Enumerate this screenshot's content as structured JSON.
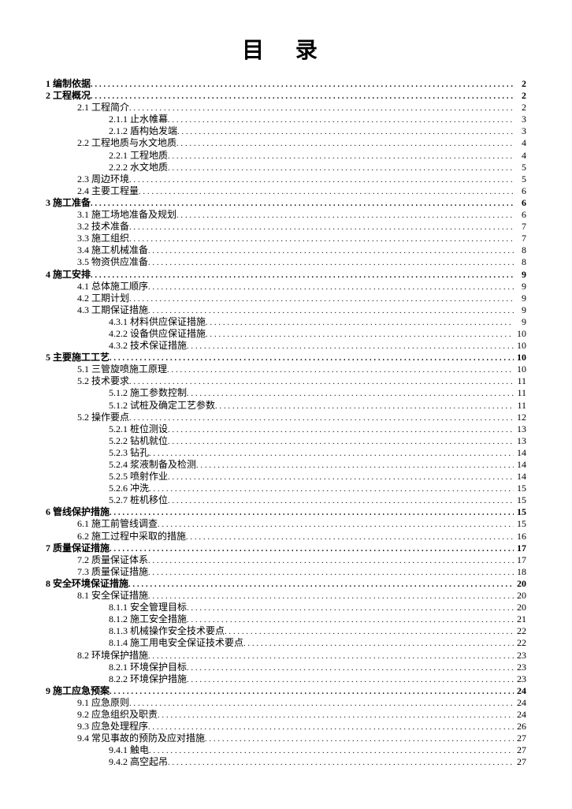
{
  "title": "目 录",
  "entries": [
    {
      "level": 1,
      "num": "1",
      "label": "编制依据",
      "page": "2"
    },
    {
      "level": 1,
      "num": "2",
      "label": "工程概况",
      "page": "2"
    },
    {
      "level": 2,
      "num": "2.1",
      "label": "工程简介",
      "page": "2"
    },
    {
      "level": 3,
      "num": "2.1.1",
      "label": "止水帷幕",
      "page": "3"
    },
    {
      "level": 3,
      "num": "2.1.2",
      "label": "盾构始发端",
      "page": "3"
    },
    {
      "level": 2,
      "num": "2.2",
      "label": "工程地质与水文地质",
      "page": "4"
    },
    {
      "level": 3,
      "num": "2.2.1",
      "label": "工程地质",
      "page": "4"
    },
    {
      "level": 3,
      "num": "2.2.2",
      "label": "水文地质",
      "page": "5"
    },
    {
      "level": 2,
      "num": "2.3",
      "label": "周边环境",
      "page": "5"
    },
    {
      "level": 2,
      "num": "2.4",
      "label": "主要工程量",
      "page": "6"
    },
    {
      "level": 1,
      "num": "3",
      "label": "施工准备",
      "page": "6"
    },
    {
      "level": 2,
      "num": "3.1",
      "label": "施工场地准备及规划",
      "page": "6"
    },
    {
      "level": 2,
      "num": "3.2",
      "label": "技术准备",
      "page": "7"
    },
    {
      "level": 2,
      "num": "3.3",
      "label": "施工组织",
      "page": "7"
    },
    {
      "level": 2,
      "num": "3.4",
      "label": "施工机械准备",
      "page": "8"
    },
    {
      "level": 2,
      "num": "3.5",
      "label": "物资供应准备",
      "page": "8"
    },
    {
      "level": 1,
      "num": "4",
      "label": "施工安排",
      "page": "9"
    },
    {
      "level": 2,
      "num": "4.1",
      "label": "总体施工顺序",
      "page": "9"
    },
    {
      "level": 2,
      "num": "4.2",
      "label": "工期计划",
      "page": "9"
    },
    {
      "level": 2,
      "num": "4.3",
      "label": "工期保证措施",
      "page": "9"
    },
    {
      "level": 3,
      "num": "4.3.1",
      "label": "材料供应保证措施",
      "page": "9"
    },
    {
      "level": 3,
      "num": "4.2.2",
      "label": "设备供应保证措施",
      "page": "10"
    },
    {
      "level": 3,
      "num": "4.3.2",
      "label": "技术保证措施",
      "page": "10"
    },
    {
      "level": 1,
      "num": "5",
      "label": "主要施工工艺",
      "page": "10"
    },
    {
      "level": 2,
      "num": "5.1",
      "label": "三管旋喷施工原理",
      "page": "10"
    },
    {
      "level": 2,
      "num": "5.2",
      "label": "技术要求",
      "page": "11"
    },
    {
      "level": 3,
      "num": "5.1.2",
      "label": "施工参数控制",
      "page": "11"
    },
    {
      "level": 3,
      "num": "5.1.2",
      "label": "试桩及确定工艺参数",
      "page": "11"
    },
    {
      "level": 2,
      "num": "5.2",
      "label": "操作要点",
      "page": "12"
    },
    {
      "level": 3,
      "num": "5.2.1",
      "label": "桩位测设",
      "page": "13"
    },
    {
      "level": 3,
      "num": "5.2.2",
      "label": "钻机就位",
      "page": "13"
    },
    {
      "level": 3,
      "num": "5.2.3",
      "label": "钻孔",
      "page": "14"
    },
    {
      "level": 3,
      "num": "5.2.4",
      "label": "浆液制备及检测",
      "page": "14"
    },
    {
      "level": 3,
      "num": "5.2.5",
      "label": "喷射作业",
      "page": "14"
    },
    {
      "level": 3,
      "num": "5.2.6",
      "label": "冲洗",
      "page": "15"
    },
    {
      "level": 3,
      "num": "5.2.7",
      "label": "桩机移位",
      "page": "15"
    },
    {
      "level": 1,
      "num": "6",
      "label": "管线保护措施",
      "page": "15"
    },
    {
      "level": 2,
      "num": "6.1",
      "label": "施工前管线调查",
      "page": "15"
    },
    {
      "level": 2,
      "num": "6.2",
      "label": "施工过程中采取的措施",
      "page": "16"
    },
    {
      "level": 1,
      "num": "7",
      "label": "质量保证措施",
      "page": "17"
    },
    {
      "level": 2,
      "num": "7.2",
      "label": "质量保证体系",
      "page": "17"
    },
    {
      "level": 2,
      "num": "7.3",
      "label": "质量保证措施",
      "page": "18"
    },
    {
      "level": 1,
      "num": "8",
      "label": "安全环境保证措施",
      "page": "20"
    },
    {
      "level": 2,
      "num": "8.1",
      "label": "安全保证措施",
      "page": "20"
    },
    {
      "level": 3,
      "num": "8.1.1",
      "label": "安全管理目标",
      "page": "20"
    },
    {
      "level": 3,
      "num": "8.1.2",
      "label": "施工安全措施",
      "page": "21"
    },
    {
      "level": 3,
      "num": "8.1.3",
      "label": "机械操作安全技术要点",
      "page": "22"
    },
    {
      "level": 3,
      "num": "8.1.4",
      "label": "施工用电安全保证技术要点",
      "page": "22"
    },
    {
      "level": 2,
      "num": "8.2",
      "label": "环境保护措施",
      "page": "23"
    },
    {
      "level": 3,
      "num": "8.2.1",
      "label": "环境保护目标",
      "page": "23"
    },
    {
      "level": 3,
      "num": "8.2.2",
      "label": "环境保护措施",
      "page": "23"
    },
    {
      "level": 1,
      "num": "9",
      "label": "施工应急预案",
      "page": "24"
    },
    {
      "level": 2,
      "num": "9.1",
      "label": "应急原则",
      "page": "24"
    },
    {
      "level": 2,
      "num": "9.2",
      "label": "应急组织及职责",
      "page": "24"
    },
    {
      "level": 2,
      "num": "9.3",
      "label": "应急处理程序",
      "page": "26"
    },
    {
      "level": 2,
      "num": "9.4",
      "label": "常见事故的预防及应对措施",
      "page": "27"
    },
    {
      "level": 3,
      "num": "9.4.1",
      "label": "触电",
      "page": "27"
    },
    {
      "level": 3,
      "num": "9.4.2",
      "label": "高空起吊",
      "page": "27"
    }
  ]
}
